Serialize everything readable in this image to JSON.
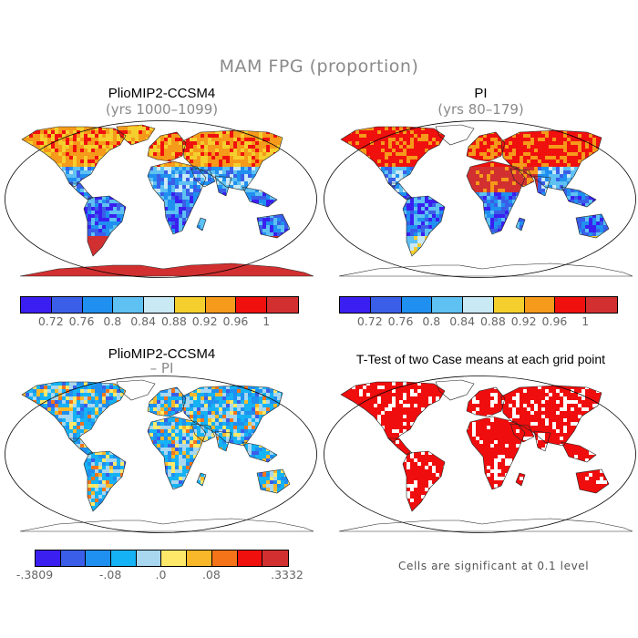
{
  "main_title": "MAM FPG (proportion)",
  "colors": {
    "seq": [
      "#3b1ff0",
      "#3a5ee8",
      "#1f8ff0",
      "#5ec1f2",
      "#c9e9f5",
      "#f5cf2e",
      "#f59a1a",
      "#f0100e",
      "#d23030"
    ],
    "diff": [
      "#3b1ff0",
      "#3a5ee8",
      "#1f8ff0",
      "#15b2f5",
      "#a8d7ef",
      "#fde86a",
      "#f8b82a",
      "#f5741a",
      "#f0100e",
      "#d23030"
    ],
    "sig": "#f00d0d",
    "coast": "#222222",
    "outline": "#000000"
  },
  "panels": {
    "tl": {
      "title": "PlioMIP2-CCSM4",
      "subtitle": "(yrs 1000–1099)"
    },
    "tr": {
      "title": "PI",
      "subtitle": "(yrs 80–179)"
    },
    "bl": {
      "title": "PlioMIP2-CCSM4",
      "subtitle": "– PI"
    },
    "br": {
      "title": "T-Test of two Case means at each grid point"
    }
  },
  "colorbars": {
    "seq_labels": [
      "0.72",
      "0.76",
      "0.8",
      "0.84",
      "0.88",
      "0.92",
      "0.96",
      "1"
    ],
    "diff_labels": [
      "-.3809",
      "-.08",
      ".0",
      ".08",
      ".3332"
    ]
  },
  "note": "Cells are significant at 0.1 level"
}
